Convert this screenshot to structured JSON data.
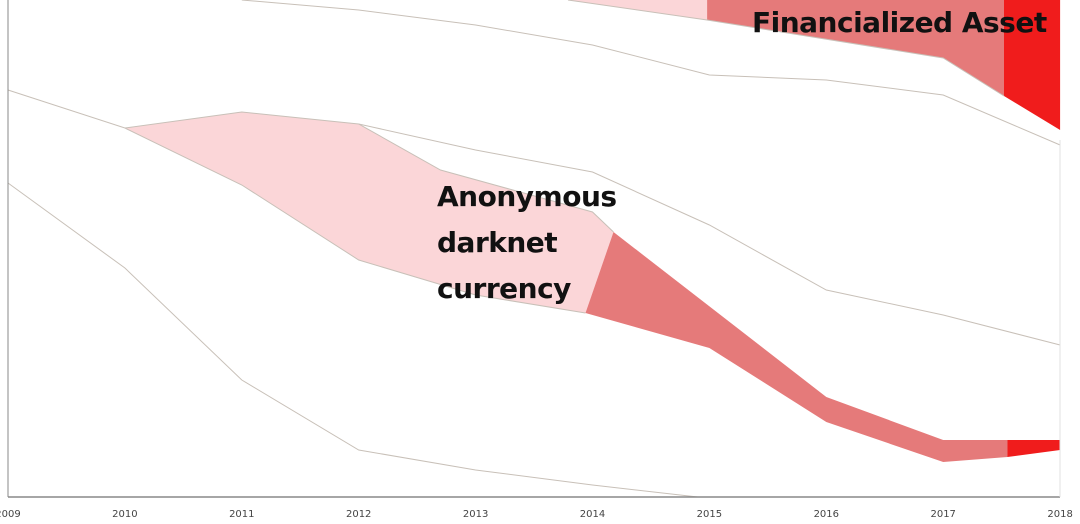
{
  "chart_data": {
    "type": "area",
    "subtype": "streamgraph",
    "title": "",
    "xlabel": "",
    "ylabel": "",
    "categories": [
      "2009",
      "2010",
      "2011",
      "2012",
      "2013",
      "2014",
      "2015",
      "2016",
      "2017",
      "2018"
    ],
    "grid": false,
    "legend": "none",
    "annotations": {
      "financialized": "Financialized Asset",
      "anonymous_line1": "Anonymous",
      "anonymous_line2": "darknet",
      "anonymous_line3": "currency"
    },
    "colors": {
      "light_pink": "#fbd6d8",
      "medium_red": "#e57a7a",
      "bright_red": "#f01c1c",
      "outline": "#c8c0b8",
      "axis": "#888888"
    }
  }
}
